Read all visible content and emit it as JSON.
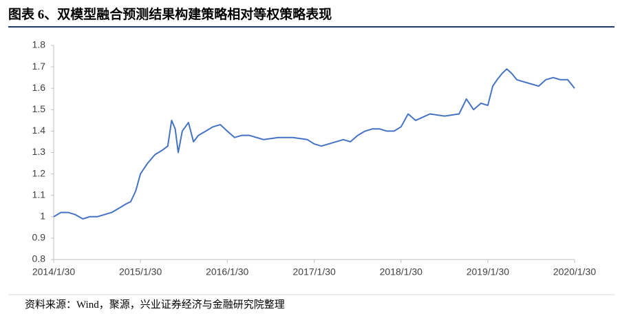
{
  "title": "图表 6、双模型融合预测结果构建策略相对等权策略表现",
  "source": "资料来源：Wind，聚源，兴业证券经济与金融研究院整理",
  "chart_data": {
    "type": "line",
    "x": [
      "2014/1/30",
      "2014/3/1",
      "2014/4/1",
      "2014/5/1",
      "2014/6/1",
      "2014/7/1",
      "2014/8/1",
      "2014/9/1",
      "2014/10/1",
      "2014/11/1",
      "2014/12/1",
      "2014/12/20",
      "2015/1/10",
      "2015/1/30",
      "2015/3/1",
      "2015/4/1",
      "2015/5/1",
      "2015/5/25",
      "2015/6/10",
      "2015/6/25",
      "2015/7/8",
      "2015/7/25",
      "2015/8/20",
      "2015/9/10",
      "2015/10/1",
      "2015/11/1",
      "2015/12/1",
      "2016/1/1",
      "2016/1/30",
      "2016/3/1",
      "2016/4/1",
      "2016/5/1",
      "2016/7/1",
      "2016/9/1",
      "2016/11/1",
      "2017/1/1",
      "2017/1/30",
      "2017/3/1",
      "2017/4/1",
      "2017/6/1",
      "2017/7/1",
      "2017/8/1",
      "2017/9/1",
      "2017/10/1",
      "2017/11/1",
      "2017/12/1",
      "2018/1/1",
      "2018/1/30",
      "2018/3/1",
      "2018/4/1",
      "2018/6/1",
      "2018/8/1",
      "2018/10/1",
      "2018/11/1",
      "2018/12/1",
      "2019/1/1",
      "2019/1/30",
      "2019/2/20",
      "2019/3/10",
      "2019/4/1",
      "2019/4/20",
      "2019/5/10",
      "2019/6/1",
      "2019/7/1",
      "2019/8/1",
      "2019/9/1",
      "2019/10/1",
      "2019/11/1",
      "2019/12/1",
      "2020/1/1",
      "2020/1/30"
    ],
    "series": [
      {
        "color": "#4472c4",
        "values": [
          1.0,
          1.02,
          1.02,
          1.01,
          0.99,
          1.0,
          1.0,
          1.01,
          1.02,
          1.04,
          1.06,
          1.07,
          1.12,
          1.2,
          1.25,
          1.29,
          1.31,
          1.33,
          1.45,
          1.41,
          1.3,
          1.4,
          1.44,
          1.35,
          1.38,
          1.4,
          1.42,
          1.43,
          1.4,
          1.37,
          1.38,
          1.38,
          1.36,
          1.37,
          1.37,
          1.36,
          1.34,
          1.33,
          1.34,
          1.36,
          1.35,
          1.38,
          1.4,
          1.41,
          1.41,
          1.4,
          1.4,
          1.42,
          1.48,
          1.45,
          1.48,
          1.47,
          1.48,
          1.55,
          1.5,
          1.53,
          1.52,
          1.61,
          1.64,
          1.67,
          1.69,
          1.67,
          1.64,
          1.63,
          1.62,
          1.61,
          1.64,
          1.65,
          1.64,
          1.64,
          1.6
        ]
      }
    ],
    "xlim": [
      "2014/1/30",
      "2020/1/30"
    ],
    "xticks": [
      "2014/1/30",
      "2015/1/30",
      "2016/1/30",
      "2017/1/30",
      "2018/1/30",
      "2019/1/30",
      "2020/1/30"
    ],
    "ylim": [
      0.8,
      1.8
    ],
    "yticks": [
      0.8,
      0.9,
      1,
      1.1,
      1.2,
      1.3,
      1.4,
      1.5,
      1.6,
      1.7,
      1.8
    ]
  }
}
